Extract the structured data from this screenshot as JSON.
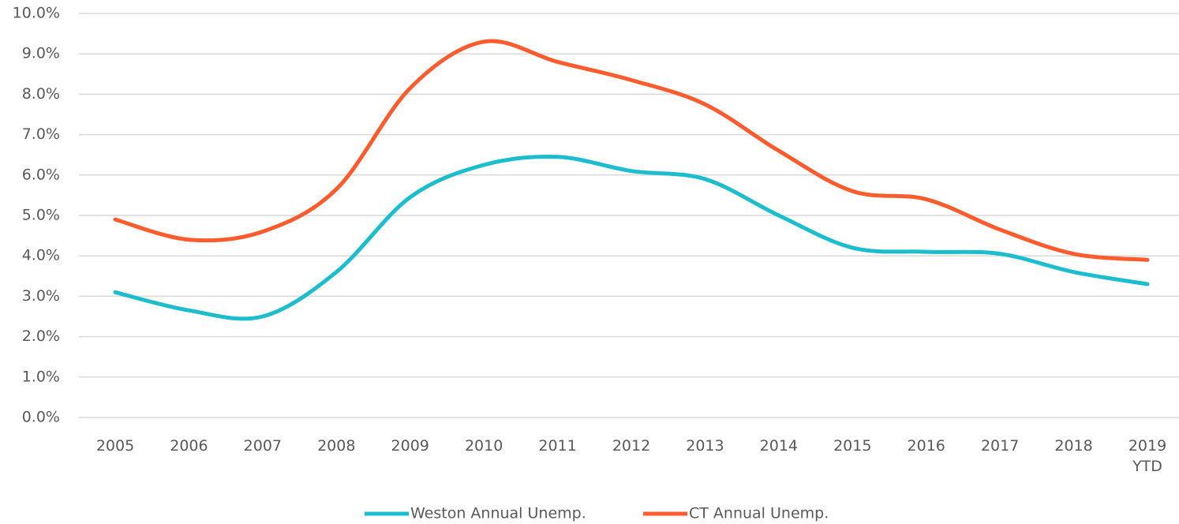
{
  "chart_data": {
    "type": "line",
    "categories": [
      "2005",
      "2006",
      "2007",
      "2008",
      "2009",
      "2010",
      "2011",
      "2012",
      "2013",
      "2014",
      "2015",
      "2016",
      "2017",
      "2018",
      "2019 YTD"
    ],
    "series": [
      {
        "name": "Weston Annual Unemp.",
        "color": "#1cbdcd",
        "values": [
          3.1,
          2.65,
          2.5,
          3.6,
          5.45,
          6.25,
          6.45,
          6.1,
          5.9,
          5.0,
          4.2,
          4.1,
          4.05,
          3.6,
          3.3
        ]
      },
      {
        "name": "CT Annual Unemp.",
        "color": "#fb5b2d",
        "values": [
          4.9,
          4.4,
          4.6,
          5.65,
          8.15,
          9.3,
          8.8,
          8.35,
          7.75,
          6.6,
          5.6,
          5.4,
          4.65,
          4.05,
          3.9
        ]
      }
    ],
    "ylim": [
      0,
      10
    ],
    "yticks": [
      {
        "value": 0,
        "label": "0.0%"
      },
      {
        "value": 1,
        "label": "1.0%"
      },
      {
        "value": 2,
        "label": "2.0%"
      },
      {
        "value": 3,
        "label": "3.0%"
      },
      {
        "value": 4,
        "label": "4.0%"
      },
      {
        "value": 5,
        "label": "5.0%"
      },
      {
        "value": 6,
        "label": "6.0%"
      },
      {
        "value": 7,
        "label": "7.0%"
      },
      {
        "value": 8,
        "label": "8.0%"
      },
      {
        "value": 9,
        "label": "9.0%"
      },
      {
        "value": 10,
        "label": "10.0%"
      }
    ],
    "grid": true,
    "legend": "bottom",
    "smooth": true
  }
}
